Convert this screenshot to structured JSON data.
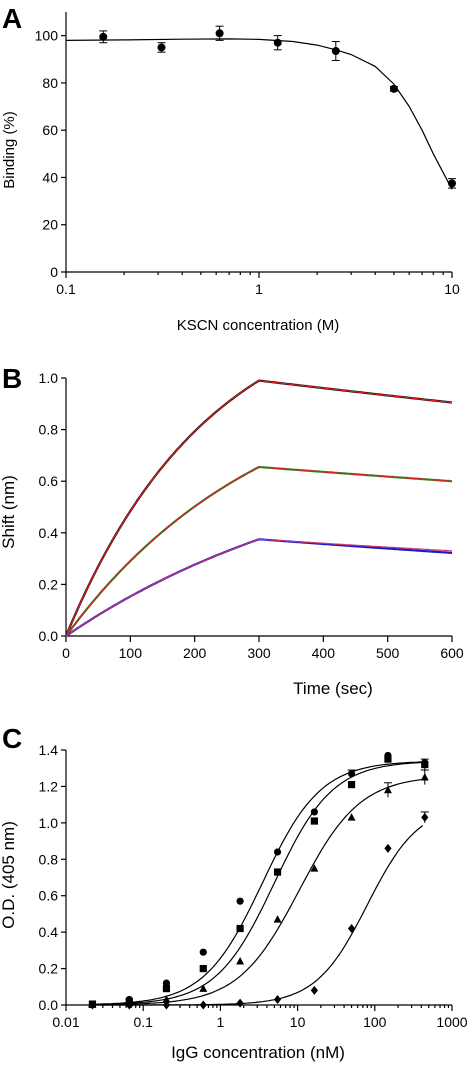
{
  "chart_data": [
    {
      "panel": "A",
      "type": "scatter",
      "xlabel": "KSCN concentration (M)",
      "ylabel": "Binding (%)",
      "xscale": "log",
      "xlim": [
        0.1,
        10
      ],
      "ylim": [
        0,
        110
      ],
      "xticks": [
        0.1,
        1,
        10
      ],
      "xtick_labels": [
        "0.1",
        "1",
        "10"
      ],
      "yticks": [
        0,
        20,
        40,
        60,
        80,
        100
      ],
      "ytick_labels": [
        "0",
        "20",
        "40",
        "60",
        "80",
        "100"
      ],
      "series": [
        {
          "marker": "circle",
          "x": [
            0.156,
            0.3125,
            0.625,
            1.25,
            2.5,
            5,
            10
          ],
          "y": [
            99.5,
            95,
            101,
            97,
            93.5,
            77.5,
            37.5
          ],
          "err": [
            2.5,
            2,
            3,
            3,
            4,
            1,
            2
          ]
        }
      ],
      "fit": {
        "x": [
          0.1,
          0.2,
          0.4,
          0.7,
          1,
          1.5,
          2,
          2.5,
          3,
          4,
          5,
          6,
          7,
          8,
          9,
          10
        ],
        "y": [
          98,
          98.2,
          98.5,
          98.6,
          98.4,
          97.5,
          96,
          94,
          92,
          87,
          79.5,
          70,
          60,
          50,
          42,
          35
        ]
      }
    },
    {
      "panel": "B",
      "type": "line",
      "xlabel": "Time (sec)",
      "ylabel": "Shift (nm)",
      "xlim": [
        0,
        600
      ],
      "ylim": [
        0,
        1.0
      ],
      "xticks": [
        0,
        100,
        200,
        300,
        400,
        500,
        600
      ],
      "xtick_labels": [
        "0",
        "100",
        "200",
        "300",
        "400",
        "500",
        "600"
      ],
      "yticks": [
        0,
        0.2,
        0.4,
        0.6,
        0.8,
        1.0
      ],
      "ytick_labels": [
        "0.0",
        "0.2",
        "0.4",
        "0.6",
        "0.8",
        "1.0"
      ],
      "series": [
        {
          "color": "#000000",
          "assoc_end": 0.99,
          "assoc_k": 0.0045,
          "dissoc_end": 0.905,
          "fit_color": "#e02020"
        },
        {
          "color": "#1a8a2a",
          "assoc_end": 0.655,
          "assoc_k": 0.0032,
          "dissoc_end": 0.6,
          "fit_color": "#e02020"
        },
        {
          "color": "#1a1ad0",
          "assoc_end": 0.375,
          "assoc_k": 0.0022,
          "dissoc_end": 0.33,
          "fit_color": "#cc3366"
        }
      ],
      "association_end_time": 300
    },
    {
      "panel": "C",
      "type": "scatter",
      "xlabel": "IgG concentration (nM)",
      "ylabel": "O.D. (405 nm)",
      "xscale": "log",
      "xlim": [
        0.01,
        1000
      ],
      "ylim": [
        0,
        1.4
      ],
      "xticks": [
        0.01,
        0.1,
        1,
        10,
        100,
        1000
      ],
      "xtick_labels": [
        "0.01",
        "0.1",
        "1",
        "10",
        "100",
        "1000"
      ],
      "yticks": [
        0,
        0.2,
        0.4,
        0.6,
        0.8,
        1.0,
        1.2,
        1.4
      ],
      "ytick_labels": [
        "0.0",
        "0.2",
        "0.4",
        "0.6",
        "0.8",
        "1.0",
        "1.2",
        "1.4"
      ],
      "series": [
        {
          "marker": "circle",
          "x": [
            0.022,
            0.066,
            0.2,
            0.6,
            1.8,
            5.5,
            16.5,
            50,
            148,
            444
          ],
          "y": [
            0.005,
            0.03,
            0.12,
            0.29,
            0.57,
            0.84,
            1.06,
            1.27,
            1.37,
            1.33
          ],
          "ec50": 3.5,
          "top": 1.34,
          "hill": 1.15
        },
        {
          "marker": "square",
          "x": [
            0.022,
            0.066,
            0.2,
            0.6,
            1.8,
            5.5,
            16.5,
            50,
            148,
            444
          ],
          "y": [
            0.005,
            0.02,
            0.09,
            0.2,
            0.42,
            0.73,
            1.01,
            1.21,
            1.35,
            1.32
          ],
          "ec50": 5.0,
          "top": 1.34,
          "hill": 1.15
        },
        {
          "marker": "triangle",
          "x": [
            0.022,
            0.066,
            0.2,
            0.6,
            1.8,
            5.5,
            16.5,
            50,
            148,
            444
          ],
          "y": [
            0.002,
            0.01,
            0.03,
            0.09,
            0.24,
            0.47,
            0.75,
            1.03,
            1.18,
            1.25
          ],
          "ec50": 10.5,
          "top": 1.26,
          "hill": 1.1
        },
        {
          "marker": "diamond",
          "x": [
            0.022,
            0.066,
            0.2,
            0.6,
            1.8,
            5.5,
            16.5,
            50,
            148,
            444
          ],
          "y": [
            0.0,
            0.0,
            0.0,
            0.0,
            0.01,
            0.03,
            0.08,
            0.42,
            0.86,
            1.03
          ],
          "ec50": 80,
          "top": 1.1,
          "hill": 1.3
        }
      ]
    }
  ]
}
